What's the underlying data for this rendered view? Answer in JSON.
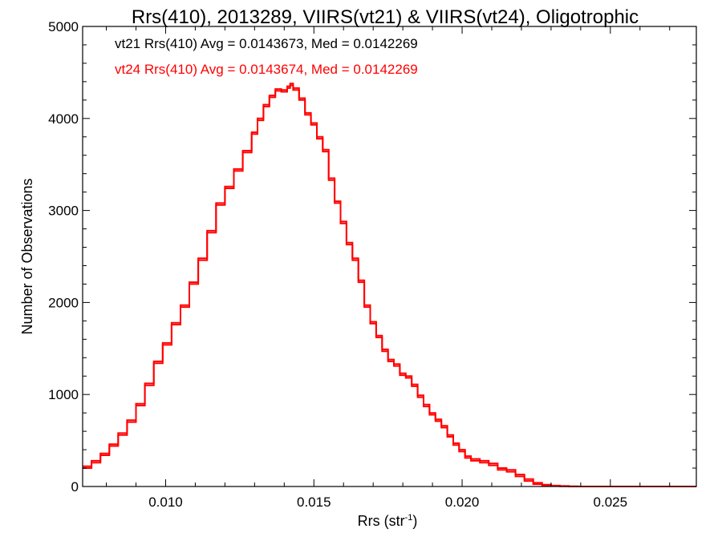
{
  "chart_data": {
    "type": "line",
    "title": "Rrs(410), 2013289, VIIRS(vt21) & VIIRS(vt24), Oligotrophic",
    "xlabel": "Rrs (str",
    "xlabel_sup": "-1",
    "xlabel_close": ")",
    "ylabel": "Number of Observations",
    "xlim": [
      0.0072,
      0.0279
    ],
    "ylim": [
      0,
      5000
    ],
    "x_ticks": [
      0.01,
      0.015,
      0.02,
      0.025
    ],
    "x_tick_labels": [
      "0.010",
      "0.015",
      "0.020",
      "0.025"
    ],
    "y_ticks": [
      0,
      1000,
      2000,
      3000,
      4000,
      5000
    ],
    "y_tick_labels": [
      "0",
      "1000",
      "2000",
      "3000",
      "4000",
      "5000"
    ],
    "grid": false,
    "step": true,
    "annotations": [
      {
        "text": "vt21 Rrs(410) Avg = 0.0143673, Med = 0.0142269",
        "color": "#000000"
      },
      {
        "text": "vt24 Rrs(410) Avg = 0.0143674, Med = 0.0142269",
        "color": "#ff0000"
      }
    ],
    "series": [
      {
        "color": "#ff0000",
        "x": [
          0.0072,
          0.0075,
          0.0078,
          0.0081,
          0.0084,
          0.0087,
          0.009,
          0.0093,
          0.0096,
          0.0099,
          0.0102,
          0.0105,
          0.0108,
          0.0111,
          0.0114,
          0.0117,
          0.012,
          0.0123,
          0.0126,
          0.0129,
          0.0131,
          0.0133,
          0.0135,
          0.0137,
          0.0139,
          0.0141,
          0.0142,
          0.0143,
          0.0145,
          0.0147,
          0.0149,
          0.0151,
          0.0153,
          0.0155,
          0.0157,
          0.0159,
          0.0161,
          0.0163,
          0.0165,
          0.0167,
          0.0169,
          0.0171,
          0.0173,
          0.0175,
          0.0177,
          0.0179,
          0.0181,
          0.0183,
          0.0185,
          0.0187,
          0.0189,
          0.0191,
          0.0193,
          0.0195,
          0.0197,
          0.0199,
          0.0201,
          0.0203,
          0.0206,
          0.0209,
          0.0212,
          0.0215,
          0.0218,
          0.0221,
          0.0224,
          0.0227,
          0.023,
          0.0233,
          0.0236,
          0.0239,
          0.0242,
          0.0245,
          0.025,
          0.0255,
          0.026,
          0.0265,
          0.027,
          0.0279
        ],
        "values": [
          220,
          280,
          360,
          460,
          580,
          720,
          900,
          1120,
          1360,
          1560,
          1780,
          1970,
          2220,
          2480,
          2780,
          3080,
          3260,
          3450,
          3650,
          3850,
          4000,
          4150,
          4250,
          4320,
          4310,
          4350,
          4380,
          4330,
          4220,
          4060,
          3950,
          3800,
          3660,
          3350,
          3100,
          2880,
          2650,
          2480,
          2240,
          1970,
          1790,
          1640,
          1490,
          1380,
          1330,
          1230,
          1200,
          1110,
          990,
          890,
          800,
          730,
          660,
          560,
          470,
          400,
          330,
          300,
          280,
          250,
          200,
          180,
          130,
          80,
          40,
          20,
          10,
          5,
          2,
          0,
          0,
          0,
          0,
          0,
          0,
          0,
          0,
          0
        ]
      },
      {
        "color": "#ff0000",
        "x": [
          0.0072,
          0.0075,
          0.0078,
          0.0081,
          0.0084,
          0.0087,
          0.009,
          0.0093,
          0.0096,
          0.0099,
          0.0102,
          0.0105,
          0.0108,
          0.0111,
          0.0114,
          0.0117,
          0.012,
          0.0123,
          0.0126,
          0.0129,
          0.0131,
          0.0133,
          0.0135,
          0.0137,
          0.0139,
          0.0141,
          0.0142,
          0.0143,
          0.0145,
          0.0147,
          0.0149,
          0.0151,
          0.0153,
          0.0155,
          0.0157,
          0.0159,
          0.0161,
          0.0163,
          0.0165,
          0.0167,
          0.0169,
          0.0171,
          0.0173,
          0.0175,
          0.0177,
          0.0179,
          0.0181,
          0.0183,
          0.0185,
          0.0187,
          0.0189,
          0.0191,
          0.0193,
          0.0195,
          0.0197,
          0.0199,
          0.0201,
          0.0203,
          0.0206,
          0.0209,
          0.0212,
          0.0215,
          0.0218,
          0.0221,
          0.0224,
          0.0227,
          0.023,
          0.0233,
          0.0236,
          0.0239,
          0.0242,
          0.0245,
          0.025,
          0.0255,
          0.026,
          0.0265,
          0.027,
          0.0279
        ],
        "values": [
          200,
          260,
          340,
          440,
          560,
          700,
          880,
          1100,
          1340,
          1540,
          1760,
          1950,
          2200,
          2460,
          2760,
          3060,
          3240,
          3430,
          3630,
          3830,
          3980,
          4130,
          4230,
          4300,
          4290,
          4330,
          4360,
          4310,
          4200,
          4040,
          3930,
          3780,
          3640,
          3330,
          3080,
          2860,
          2630,
          2460,
          2220,
          1950,
          1770,
          1620,
          1470,
          1360,
          1310,
          1210,
          1180,
          1090,
          970,
          870,
          780,
          710,
          640,
          540,
          450,
          380,
          310,
          280,
          260,
          230,
          180,
          160,
          110,
          60,
          25,
          10,
          5,
          2,
          0,
          0,
          0,
          0,
          0,
          0,
          0,
          0,
          0,
          0
        ]
      }
    ]
  }
}
